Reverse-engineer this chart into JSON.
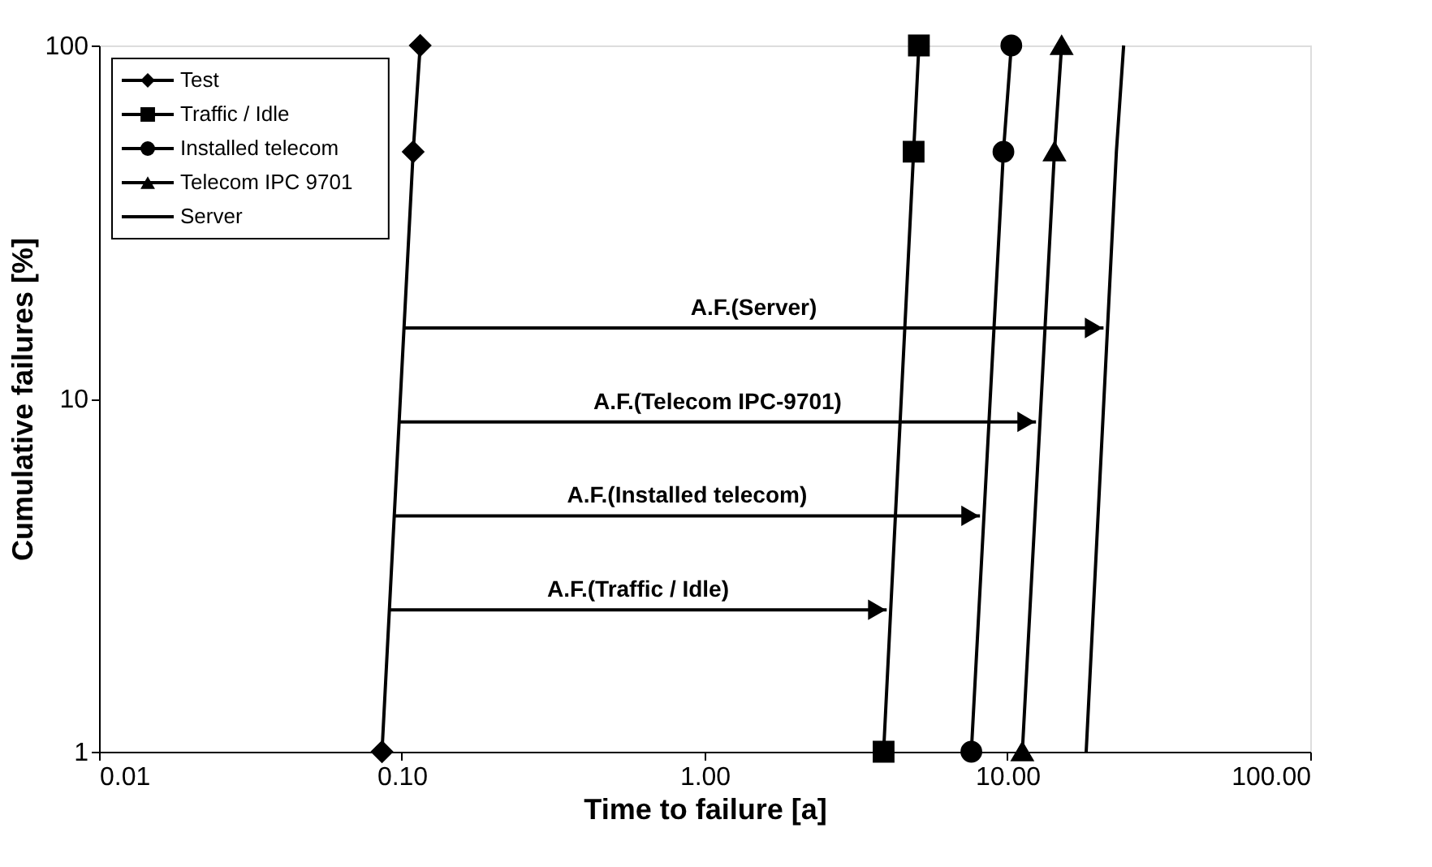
{
  "chart_data": {
    "type": "line",
    "xlabel": "Time to failure [a]",
    "ylabel": "Cumulative failures [%]",
    "log": "xy",
    "grid": false,
    "legend": "top left",
    "line_style": "solid",
    "xlim": [
      0.01,
      100
    ],
    "ylim": [
      1,
      100
    ],
    "xticks": [
      0.01,
      {
        "value": 0.1,
        "label": "0.10"
      },
      {
        "value": 1,
        "label": "1.00"
      },
      {
        "value": 10,
        "label": "10.00"
      },
      {
        "value": 100,
        "label": "100.00"
      }
    ],
    "yticks": [
      1,
      10,
      100
    ],
    "series": [
      {
        "name": "Test",
        "color": "#000000",
        "marker": "diamond",
        "x": [
          0.086,
          0.109,
          0.115
        ],
        "values": [
          1,
          50,
          100
        ]
      },
      {
        "name": "Traffic / Idle",
        "color": "#000000",
        "marker": "square",
        "x": [
          3.9,
          4.9,
          5.1
        ],
        "values": [
          1,
          50,
          100
        ]
      },
      {
        "name": "Installed telecom",
        "color": "#000000",
        "marker": "circle",
        "x": [
          7.6,
          9.7,
          10.3
        ],
        "values": [
          1,
          50,
          100
        ]
      },
      {
        "name": "Telecom IPC 9701",
        "color": "#000000",
        "marker": "triangle",
        "x": [
          11.2,
          14.3,
          15.1
        ],
        "values": [
          1,
          50,
          100
        ]
      },
      {
        "name": "Server",
        "color": "#000000",
        "marker": "none",
        "x": [
          18.2,
          22.9,
          24.2
        ],
        "values": [
          1,
          50,
          100
        ]
      }
    ],
    "annotations": [
      "A.F.(Server)",
      "A.F.(Telecom IPC-9701)",
      "A.F.(Installed telecom)",
      "A.F.(Traffic / Idle)"
    ]
  }
}
